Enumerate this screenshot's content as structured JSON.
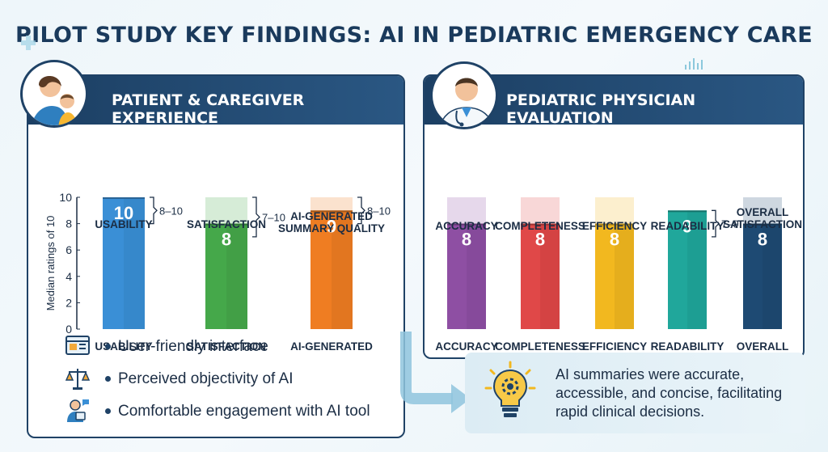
{
  "title": "PILOT STUDY KEY FINDINGS: AI IN PEDIATRIC EMERGENCY CARE",
  "colors": {
    "navy": "#1f4266",
    "usability": "#3a8fd6",
    "satisfaction": "#45a84a",
    "ai_summary": "#ef7d22",
    "accuracy": "#8e4fa3",
    "completeness": "#e04848",
    "efficiency": "#f2b81f",
    "readability": "#20a79b",
    "overall": "#1e4a73"
  },
  "left_panel": {
    "header": "PATIENT & CAREGIVER EXPERIENCE",
    "avatar_icon": "mother-child-icon",
    "bullets": [
      {
        "icon": "browser-window-icon",
        "text": "User-friendly interface"
      },
      {
        "icon": "balance-scale-icon",
        "text": "Perceived objectivity of AI"
      },
      {
        "icon": "person-tablet-icon",
        "text": "Comfortable engagement with AI tool"
      }
    ]
  },
  "right_panel": {
    "header": "PEDIATRIC PHYSICIAN EVALUATION",
    "avatar_icon": "doctor-icon",
    "summary_icon": "lightbulb-gear-icon",
    "summary_text": "AI summaries were accurate, accessible, and concise, facilitating rapid clinical decisions."
  },
  "chart_data": [
    {
      "type": "bar",
      "title": "",
      "ylabel": "Median ratings of 10",
      "ylim": [
        0,
        10
      ],
      "yticks": [
        0,
        2,
        4,
        6,
        8,
        10
      ],
      "categories": [
        "USABILITY",
        "SATISFACTION",
        "AI-GENERATED SUMMARY QUALITY"
      ],
      "bottom_labels": [
        "USABILITY",
        "SATISFACTION",
        "AI-GENERATED"
      ],
      "top_labels": [
        "USABILITY",
        "SATISFACTION",
        "AI-GENERATED\nSUMMARY QUALITY"
      ],
      "values": [
        10,
        8,
        9
      ],
      "ranges": [
        [
          8,
          10
        ],
        [
          7,
          10
        ],
        [
          8,
          10
        ]
      ],
      "range_labels": [
        "8–10",
        "7–10",
        "8–10"
      ]
    },
    {
      "type": "bar",
      "title": "",
      "ylim": [
        0,
        10
      ],
      "categories": [
        "ACCURACY",
        "COMPLETENESS",
        "EFFICIENCY",
        "READABILITY",
        "OVERALL SATISFACTION"
      ],
      "top_labels": [
        "ACCURACY",
        "COMPLETENESS",
        "EFFICIENCY",
        "READABILITY",
        "OVERALL\nSATISFACTION"
      ],
      "bottom_labels": [
        "ACCURACY",
        "COMPLETENESS",
        "EFFICIENCY",
        "READABILITY",
        "OVERALL\nSATISFACTION"
      ],
      "values": [
        8,
        8,
        8,
        9,
        8
      ],
      "ranges": [
        null,
        null,
        null,
        [
          7,
          9
        ],
        null
      ],
      "range_labels": [
        "",
        "",
        "",
        "7–9",
        ""
      ]
    }
  ]
}
